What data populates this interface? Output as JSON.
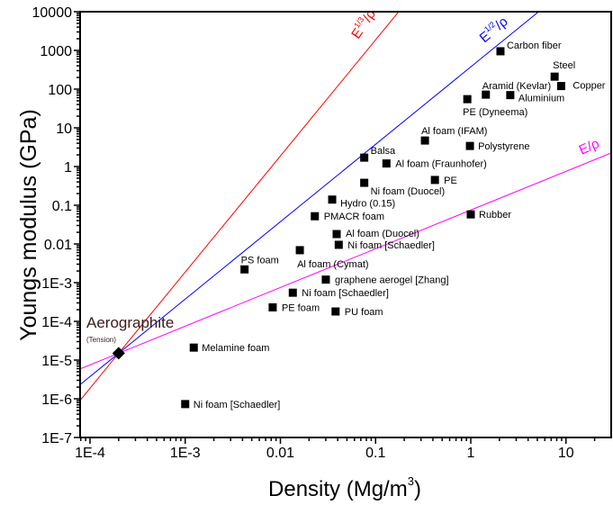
{
  "chart_data": {
    "type": "scatter",
    "xlabel": "Density (Mg/m",
    "xlabel_sup": "3",
    "xlabel_end": ")",
    "ylabel": "Youngs modulus (GPa)",
    "xscale": "log",
    "yscale": "log",
    "xlim": [
      7.9e-05,
      30
    ],
    "ylim": [
      1e-07,
      10000
    ],
    "grid": false,
    "x_ticks": [
      {
        "v": 0.0001,
        "label": "1E-4"
      },
      {
        "v": 0.001,
        "label": "1E-3"
      },
      {
        "v": 0.01,
        "label": "0.01"
      },
      {
        "v": 0.1,
        "label": "0.1"
      },
      {
        "v": 1,
        "label": "1"
      },
      {
        "v": 10,
        "label": "10"
      }
    ],
    "y_ticks": [
      {
        "v": 10000,
        "label": "10000"
      },
      {
        "v": 1000,
        "label": "1000"
      },
      {
        "v": 100,
        "label": "100"
      },
      {
        "v": 10,
        "label": "10"
      },
      {
        "v": 1,
        "label": "1"
      },
      {
        "v": 0.1,
        "label": "0.1"
      },
      {
        "v": 0.01,
        "label": "0.01"
      },
      {
        "v": 0.001,
        "label": "1E-3"
      },
      {
        "v": 0.0001,
        "label": "1E-4"
      },
      {
        "v": 1e-05,
        "label": "1E-5"
      },
      {
        "v": 1e-06,
        "label": "1E-6"
      },
      {
        "v": 1e-07,
        "label": "1E-7"
      }
    ],
    "highlight": {
      "label": "Aerographite",
      "sublabel": "(Tension)",
      "x": 0.0002,
      "y": 1.5e-05,
      "marker": "diamond",
      "label_color": "#3a1a1a"
    },
    "points": [
      {
        "label": "Carbon fiber",
        "x": 2.05,
        "y": 950
      },
      {
        "label": "Steel",
        "x": 7.6,
        "y": 210
      },
      {
        "label": "Copper",
        "x": 8.9,
        "y": 120
      },
      {
        "label": "Aramid (Kevlar)",
        "x": 1.44,
        "y": 72
      },
      {
        "label": "Aluminium",
        "x": 2.6,
        "y": 70
      },
      {
        "label": "PE (Dyneema)",
        "x": 0.92,
        "y": 55
      },
      {
        "label": "Al foam (IFAM)",
        "x": 0.33,
        "y": 4.7
      },
      {
        "label": "Polystyrene",
        "x": 0.98,
        "y": 3.4
      },
      {
        "label": "Balsa",
        "x": 0.076,
        "y": 1.7
      },
      {
        "label": "Al foam (Fraunhofer)",
        "x": 0.13,
        "y": 1.2
      },
      {
        "label": "PE",
        "x": 0.42,
        "y": 0.45
      },
      {
        "label": "Ni foam (Duocel)",
        "x": 0.076,
        "y": 0.38
      },
      {
        "label": "Hydro (0.15)",
        "x": 0.035,
        "y": 0.14
      },
      {
        "label": "PMACR foam",
        "x": 0.023,
        "y": 0.052
      },
      {
        "label": "Rubber",
        "x": 1.0,
        "y": 0.058
      },
      {
        "label": "Al foam (Duocel)",
        "x": 0.039,
        "y": 0.018
      },
      {
        "label": "Ni foam [Schaedler]",
        "x": 0.041,
        "y": 0.0095
      },
      {
        "label": "Al foam (Cymat)",
        "x": 0.016,
        "y": 0.0069
      },
      {
        "label": "PS foam",
        "x": 0.0042,
        "y": 0.0022
      },
      {
        "label": "graphene aerogel [Zhang]",
        "x": 0.03,
        "y": 0.0012
      },
      {
        "label": "Ni foam [Schaedler]",
        "x": 0.0135,
        "y": 0.00055
      },
      {
        "label": "PE foam",
        "x": 0.0083,
        "y": 0.00023
      },
      {
        "label": "PU foam",
        "x": 0.038,
        "y": 0.00018
      },
      {
        "label": "Melamine foam",
        "x": 0.00123,
        "y": 2.1e-05
      },
      {
        "label": "Ni foam [Schaedler]",
        "x": 0.001,
        "y": 7.3e-07
      }
    ],
    "guide_lines": [
      {
        "label": "E",
        "sup": "1/3",
        "label_end": "/ρ",
        "slope": 3,
        "color": "#ff0000"
      },
      {
        "label": "E",
        "sup": "1/2",
        "label_end": "/ρ",
        "slope": 2,
        "color": "#0000ff"
      },
      {
        "label": "E/ρ",
        "sup": "",
        "label_end": "",
        "slope": 1,
        "color": "#ff00ff"
      }
    ]
  }
}
